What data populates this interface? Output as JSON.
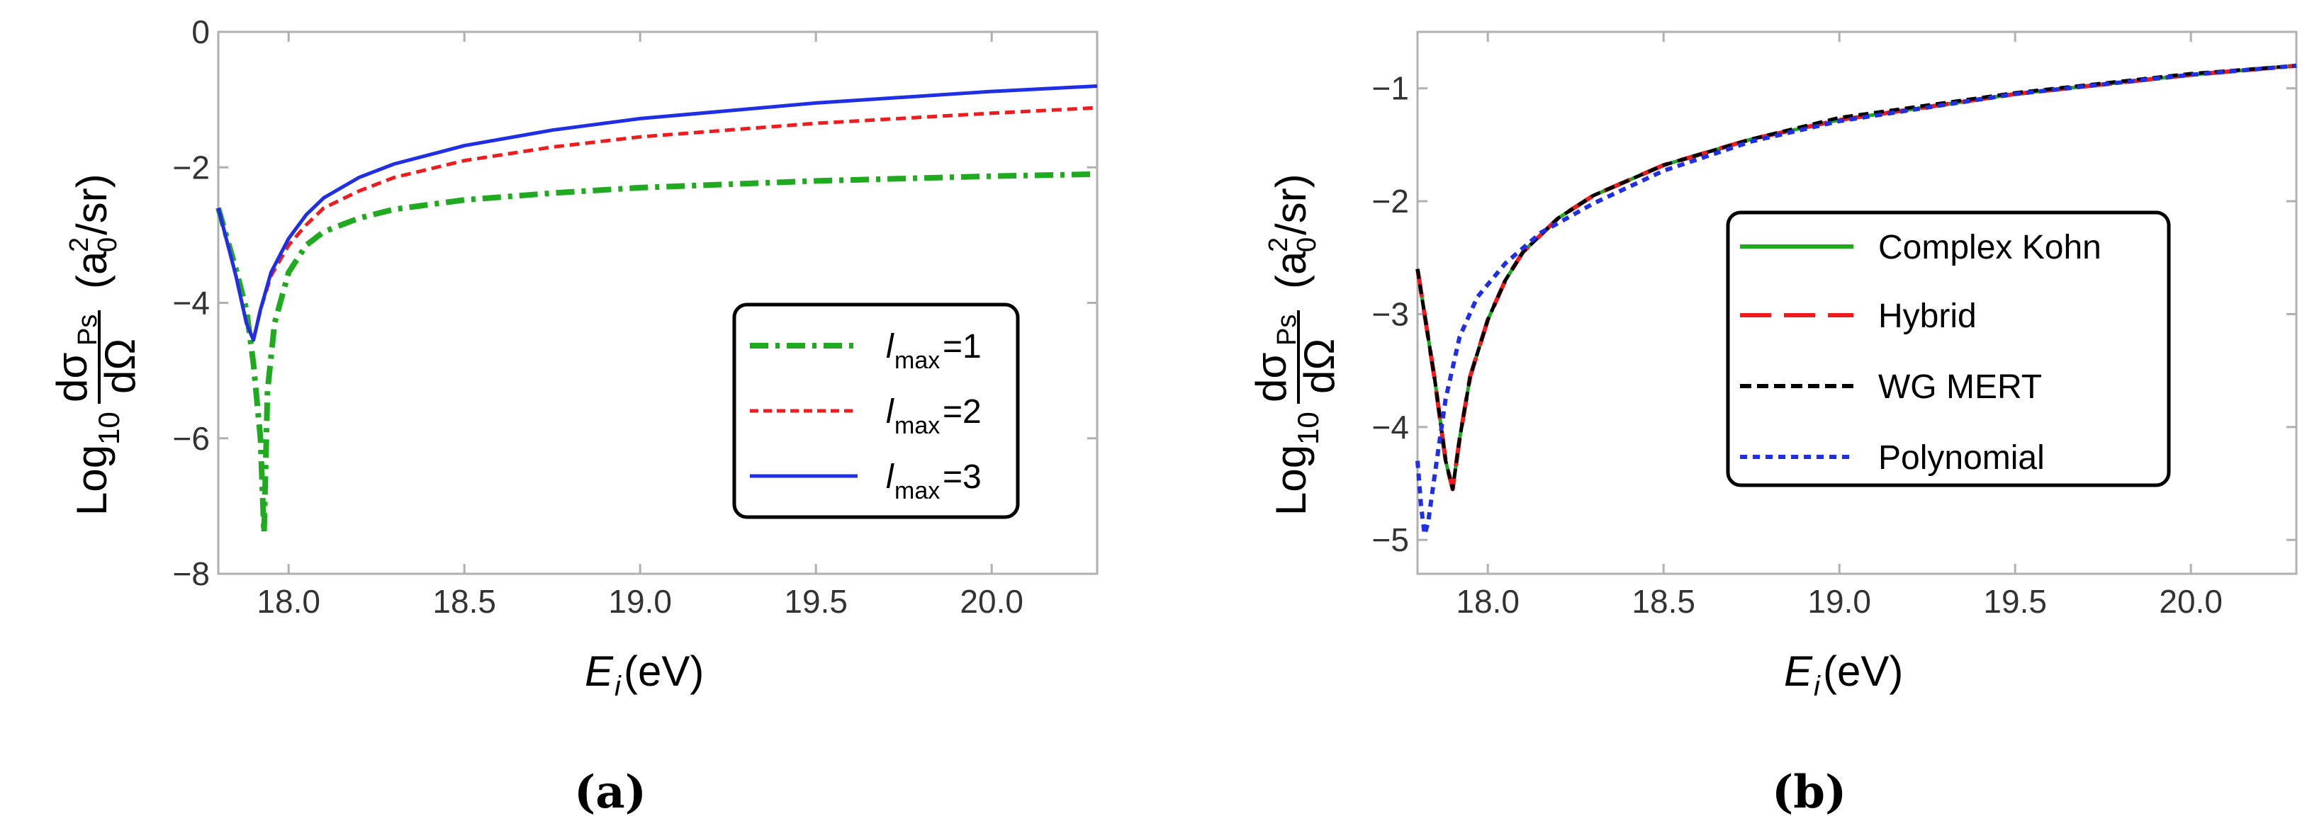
{
  "chart_data": [
    {
      "panel_label": "(a)",
      "type": "line",
      "xlabel": "E_i (eV)",
      "xlabel_main": "E",
      "xlabel_sub": "i",
      "xlabel_unit": " (eV)",
      "ylabel": "Log10 dσPs/dΩ (a0^2/sr)",
      "ylabel_log": "Log",
      "ylabel_base": "10",
      "ylabel_num": "dσ",
      "ylabel_num_sub": "Ps",
      "ylabel_den": "dΩ",
      "ylabel_unit_a": "(a",
      "ylabel_unit_sub": "0",
      "ylabel_unit_sup": "2",
      "ylabel_unit_end": "/sr)",
      "xlim": [
        17.8,
        20.3
      ],
      "ylim": [
        -8,
        0
      ],
      "xticks": [
        "18.0",
        "18.5",
        "19.0",
        "19.5",
        "20.0"
      ],
      "yticks": [
        "0",
        "−2",
        "−4",
        "−6",
        "−8"
      ],
      "legend_position": "lower-right",
      "series": [
        {
          "name": "lmax=1",
          "label_l": "l",
          "label_sub": "max",
          "label_val": "=1",
          "color": "#1faa1f",
          "dash": "dashdot",
          "x": [
            17.8,
            17.85,
            17.88,
            17.9,
            17.92,
            17.93,
            17.94,
            17.96,
            18.0,
            18.05,
            18.1,
            18.2,
            18.3,
            18.5,
            18.75,
            19.0,
            19.5,
            20.0,
            20.3
          ],
          "y": [
            -2.6,
            -3.5,
            -4.1,
            -4.9,
            -6.0,
            -7.4,
            -5.3,
            -4.3,
            -3.55,
            -3.15,
            -2.95,
            -2.75,
            -2.62,
            -2.48,
            -2.38,
            -2.3,
            -2.2,
            -2.13,
            -2.1
          ]
        },
        {
          "name": "lmax=2",
          "label_l": "l",
          "label_sub": "max",
          "label_val": "=2",
          "color": "#ee1c1c",
          "dash": "dashed",
          "x": [
            17.8,
            17.85,
            17.88,
            17.9,
            17.92,
            17.95,
            18.0,
            18.05,
            18.1,
            18.2,
            18.3,
            18.5,
            18.75,
            19.0,
            19.5,
            20.0,
            20.3
          ],
          "y": [
            -2.6,
            -3.6,
            -4.3,
            -4.55,
            -4.1,
            -3.6,
            -3.15,
            -2.85,
            -2.6,
            -2.35,
            -2.15,
            -1.9,
            -1.7,
            -1.55,
            -1.35,
            -1.2,
            -1.12
          ]
        },
        {
          "name": "lmax=3",
          "label_l": "l",
          "label_sub": "max",
          "label_val": "=3",
          "color": "#1f2fe6",
          "dash": "solid",
          "x": [
            17.8,
            17.85,
            17.88,
            17.9,
            17.92,
            17.95,
            18.0,
            18.05,
            18.1,
            18.2,
            18.3,
            18.5,
            18.75,
            19.0,
            19.5,
            20.0,
            20.3
          ],
          "y": [
            -2.6,
            -3.6,
            -4.3,
            -4.55,
            -4.1,
            -3.55,
            -3.05,
            -2.7,
            -2.45,
            -2.15,
            -1.95,
            -1.68,
            -1.45,
            -1.28,
            -1.05,
            -0.88,
            -0.8
          ]
        }
      ]
    },
    {
      "panel_label": "(b)",
      "type": "line",
      "xlabel": "E_i (eV)",
      "xlabel_main": "E",
      "xlabel_sub": "i",
      "xlabel_unit": " (eV)",
      "ylabel": "Log10 dσPs/dΩ (a0^2/sr)",
      "ylabel_log": "Log",
      "ylabel_base": "10",
      "ylabel_num": "dσ",
      "ylabel_num_sub": "Ps",
      "ylabel_den": "dΩ",
      "ylabel_unit_a": "(a",
      "ylabel_unit_sub": "0",
      "ylabel_unit_sup": "2",
      "ylabel_unit_end": "/sr)",
      "xlim": [
        17.8,
        20.3
      ],
      "ylim": [
        -5.3,
        -0.5
      ],
      "xticks": [
        "18.0",
        "18.5",
        "19.0",
        "19.5",
        "20.0"
      ],
      "yticks": [
        "−1",
        "−2",
        "−3",
        "−4",
        "−5"
      ],
      "legend_position": "center",
      "series": [
        {
          "name": "Complex Kohn",
          "color": "#1faa1f",
          "dash": "solid",
          "x": [
            17.8,
            17.85,
            17.88,
            17.9,
            17.92,
            17.95,
            18.0,
            18.05,
            18.1,
            18.2,
            18.3,
            18.5,
            18.75,
            19.0,
            19.5,
            20.0,
            20.3
          ],
          "y": [
            -2.6,
            -3.6,
            -4.3,
            -4.55,
            -4.1,
            -3.55,
            -3.05,
            -2.7,
            -2.45,
            -2.15,
            -1.95,
            -1.68,
            -1.45,
            -1.28,
            -1.05,
            -0.88,
            -0.8
          ]
        },
        {
          "name": "Hybrid",
          "color": "#ee1c1c",
          "dash": "longdash",
          "x": [
            17.8,
            17.85,
            17.88,
            17.9,
            17.92,
            17.95,
            18.0,
            18.05,
            18.1,
            18.2,
            18.3,
            18.5,
            18.75,
            19.0,
            19.5,
            20.0,
            20.3
          ],
          "y": [
            -2.6,
            -3.6,
            -4.3,
            -4.55,
            -4.1,
            -3.55,
            -3.05,
            -2.7,
            -2.45,
            -2.15,
            -1.95,
            -1.68,
            -1.45,
            -1.28,
            -1.05,
            -0.88,
            -0.8
          ]
        },
        {
          "name": "WG MERT",
          "color": "#000000",
          "dash": "dashed",
          "x": [
            17.8,
            17.85,
            17.88,
            17.9,
            17.92,
            17.95,
            18.0,
            18.05,
            18.1,
            18.2,
            18.3,
            18.5,
            18.75,
            19.0,
            19.5,
            20.0,
            20.3
          ],
          "y": [
            -2.6,
            -3.6,
            -4.3,
            -4.55,
            -4.1,
            -3.55,
            -3.05,
            -2.7,
            -2.45,
            -2.15,
            -1.95,
            -1.68,
            -1.45,
            -1.26,
            -1.04,
            -0.87,
            -0.8
          ]
        },
        {
          "name": "Polynomial",
          "color": "#1f2fe6",
          "dash": "dotted",
          "x": [
            17.8,
            17.81,
            17.82,
            17.83,
            17.85,
            17.88,
            17.92,
            17.97,
            18.05,
            18.15,
            18.3,
            18.5,
            18.75,
            19.0,
            19.5,
            20.0,
            20.3
          ],
          "y": [
            -4.3,
            -4.7,
            -4.95,
            -4.85,
            -4.4,
            -3.75,
            -3.2,
            -2.85,
            -2.55,
            -2.28,
            -2.02,
            -1.73,
            -1.47,
            -1.29,
            -1.05,
            -0.88,
            -0.8
          ]
        }
      ]
    }
  ]
}
